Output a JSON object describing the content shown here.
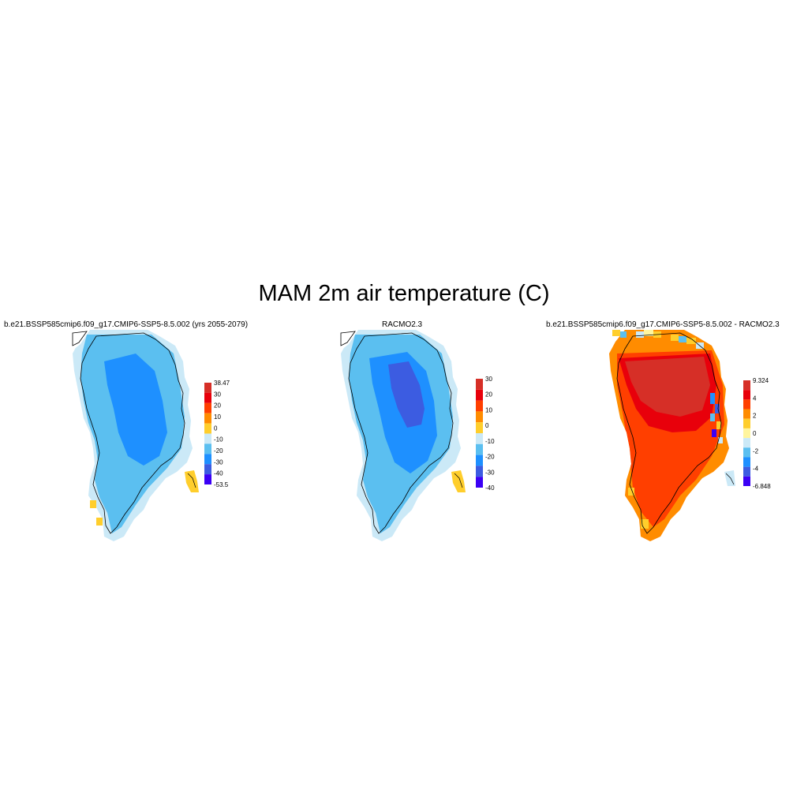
{
  "title": "MAM 2m air temperature (C)",
  "panels": [
    {
      "title": "b.e21.BSSP585cmip6.f09_g17.CMIP6-SSP5-8.5.002 (yrs 2055-2079)",
      "colorbar": {
        "colors": [
          "#d62f27",
          "#e8000b",
          "#ff3f00",
          "#ff8c00",
          "#ffce2c",
          "#cbe9f7",
          "#5bbff0",
          "#1e90ff",
          "#3c5ce1",
          "#3b00f5"
        ],
        "labels": [
          "38.47",
          "30",
          "20",
          "10",
          "0",
          "-10",
          "-20",
          "-30",
          "-40",
          "-53.5"
        ]
      }
    },
    {
      "title": "RACMO2.3",
      "colorbar": {
        "colors": [
          "#d62f27",
          "#e8000b",
          "#ff3f00",
          "#ff8c00",
          "#ffce2c",
          "#cbe9f7",
          "#5bbff0",
          "#1e90ff",
          "#3c5ce1",
          "#3b00f5"
        ],
        "labels": [
          "30",
          "20",
          "10",
          "0",
          "-10",
          "-20",
          "-30",
          "-40"
        ]
      }
    },
    {
      "title": "b.e21.BSSP585cmip6.f09_g17.CMIP6-SSP5-8.5.002 - RACMO2.3",
      "colorbar": {
        "colors": [
          "#d62f27",
          "#e8000b",
          "#ff3f00",
          "#ff8c00",
          "#ffce2c",
          "#fff59e",
          "#cbe9f7",
          "#5bbff0",
          "#1e90ff",
          "#3c5ce1",
          "#3b00f5"
        ],
        "labels": [
          "9.324",
          "4",
          "2",
          "0",
          "-2",
          "-4",
          "-6.848"
        ]
      }
    }
  ]
}
